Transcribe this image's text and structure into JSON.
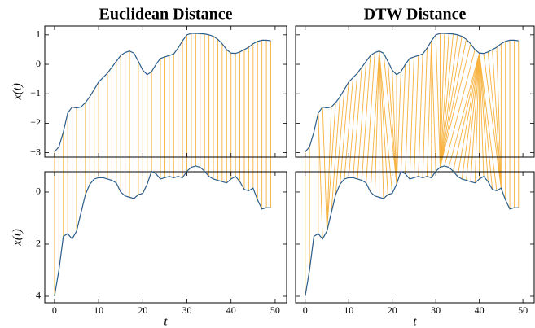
{
  "chart_data": [
    {
      "type": "line",
      "alignment": "euclidean",
      "title": "Euclidean Distance",
      "xlabel": "t",
      "ylabel": "x(t)",
      "y2label": "x(t)",
      "link_color": "#f7b13c",
      "show_ytick_labels": true,
      "x": [
        0,
        1,
        2,
        3,
        4,
        5,
        6,
        7,
        8,
        9,
        10,
        11,
        12,
        13,
        14,
        15,
        16,
        17,
        18,
        19,
        20,
        21,
        22,
        23,
        24,
        25,
        26,
        27,
        28,
        29,
        30,
        31,
        32,
        33,
        34,
        35,
        36,
        37,
        38,
        39,
        40,
        41,
        42,
        43,
        44,
        45,
        46,
        47,
        48,
        49
      ],
      "xlim": [
        -2.2,
        52.6
      ],
      "xticks": [
        0,
        10,
        20,
        30,
        40,
        50
      ],
      "ylim": [
        -3.15,
        1.3
      ],
      "yticks": [
        1,
        0,
        {
          "value": -1,
          "label": "−1"
        },
        {
          "value": -2,
          "label": "−2"
        },
        {
          "value": -3,
          "label": "−3"
        }
      ],
      "y2lim": [
        -4.25,
        0.78
      ],
      "y2ticks": [
        0,
        {
          "value": -2,
          "label": "−2"
        },
        {
          "value": -4,
          "label": "−4"
        }
      ],
      "series": [
        {
          "color": "#2b5d8a",
          "values": [
            -2.97,
            -2.8,
            -2.3,
            -1.65,
            -1.45,
            -1.48,
            -1.45,
            -1.3,
            -1.1,
            -0.85,
            -0.6,
            -0.45,
            -0.3,
            -0.1,
            0.1,
            0.3,
            0.4,
            0.45,
            0.38,
            0.1,
            -0.2,
            -0.35,
            -0.25,
            0.0,
            0.2,
            0.25,
            0.3,
            0.35,
            0.55,
            0.8,
            1.0,
            1.05,
            1.05,
            1.04,
            1.03,
            1.0,
            0.95,
            0.85,
            0.7,
            0.5,
            0.38,
            0.37,
            0.42,
            0.5,
            0.58,
            0.7,
            0.78,
            0.82,
            0.82,
            0.8
          ]
        },
        {
          "color": "#2b5d8a",
          "axis": "y2",
          "values": [
            -4.0,
            -3.0,
            -1.7,
            -1.6,
            -1.8,
            -1.5,
            -0.8,
            -0.1,
            0.3,
            0.5,
            0.55,
            0.55,
            0.5,
            0.45,
            0.35,
            0.0,
            -0.15,
            -0.2,
            -0.25,
            -0.1,
            -0.05,
            0.3,
            0.8,
            0.7,
            0.5,
            0.55,
            0.6,
            0.55,
            0.6,
            0.55,
            0.8,
            0.95,
            1.0,
            0.95,
            0.8,
            0.6,
            0.5,
            0.45,
            0.4,
            0.35,
            0.5,
            0.6,
            0.4,
            0.1,
            0.05,
            0.15,
            -0.3,
            -0.65,
            -0.6,
            -0.6
          ]
        }
      ]
    },
    {
      "type": "line",
      "alignment": "dtw",
      "title": "DTW Distance",
      "xlabel": "t",
      "link_color": "#f7b13c",
      "show_ytick_labels": false,
      "x": [
        0,
        1,
        2,
        3,
        4,
        5,
        6,
        7,
        8,
        9,
        10,
        11,
        12,
        13,
        14,
        15,
        16,
        17,
        18,
        19,
        20,
        21,
        22,
        23,
        24,
        25,
        26,
        27,
        28,
        29,
        30,
        31,
        32,
        33,
        34,
        35,
        36,
        37,
        38,
        39,
        40,
        41,
        42,
        43,
        44,
        45,
        46,
        47,
        48,
        49
      ],
      "xlim": [
        -2.2,
        52.6
      ],
      "xticks": [
        0,
        10,
        20,
        30,
        40,
        50
      ],
      "ylim": [
        -3.15,
        1.3
      ],
      "yticks": [
        1,
        0,
        -1,
        -2,
        -3
      ],
      "y2lim": [
        -4.25,
        0.78
      ],
      "y2ticks": [
        0,
        -2,
        -4
      ],
      "series": [
        {
          "color": "#2b5d8a",
          "values": [
            -2.97,
            -2.8,
            -2.3,
            -1.65,
            -1.45,
            -1.48,
            -1.45,
            -1.3,
            -1.1,
            -0.85,
            -0.6,
            -0.45,
            -0.3,
            -0.1,
            0.1,
            0.3,
            0.4,
            0.45,
            0.38,
            0.1,
            -0.2,
            -0.35,
            -0.25,
            0.0,
            0.2,
            0.25,
            0.3,
            0.35,
            0.55,
            0.8,
            1.0,
            1.05,
            1.05,
            1.04,
            1.03,
            1.0,
            0.95,
            0.85,
            0.7,
            0.5,
            0.38,
            0.37,
            0.42,
            0.5,
            0.58,
            0.7,
            0.78,
            0.82,
            0.82,
            0.8
          ]
        },
        {
          "color": "#2b5d8a",
          "axis": "y2",
          "values": [
            -4.0,
            -3.0,
            -1.7,
            -1.6,
            -1.8,
            -1.5,
            -0.8,
            -0.1,
            0.3,
            0.5,
            0.55,
            0.55,
            0.5,
            0.45,
            0.35,
            0.0,
            -0.15,
            -0.2,
            -0.25,
            -0.1,
            -0.05,
            0.3,
            0.8,
            0.7,
            0.5,
            0.55,
            0.6,
            0.55,
            0.6,
            0.55,
            0.8,
            0.95,
            1.0,
            0.95,
            0.8,
            0.6,
            0.5,
            0.45,
            0.4,
            0.35,
            0.5,
            0.6,
            0.4,
            0.1,
            0.05,
            0.15,
            -0.3,
            -0.65,
            -0.6,
            -0.6
          ]
        }
      ],
      "warping_path": [
        [
          0,
          0
        ],
        [
          1,
          1
        ],
        [
          2,
          2
        ],
        [
          3,
          3
        ],
        [
          3,
          4
        ],
        [
          4,
          5
        ],
        [
          5,
          5
        ],
        [
          6,
          5
        ],
        [
          7,
          5
        ],
        [
          8,
          6
        ],
        [
          9,
          7
        ],
        [
          10,
          8
        ],
        [
          11,
          9
        ],
        [
          12,
          10
        ],
        [
          13,
          11
        ],
        [
          14,
          12
        ],
        [
          15,
          13
        ],
        [
          16,
          14
        ],
        [
          17,
          15
        ],
        [
          17,
          16
        ],
        [
          17,
          17
        ],
        [
          17,
          18
        ],
        [
          17,
          19
        ],
        [
          17,
          20
        ],
        [
          18,
          21
        ],
        [
          19,
          21
        ],
        [
          20,
          21
        ],
        [
          21,
          21
        ],
        [
          22,
          21
        ],
        [
          23,
          22
        ],
        [
          24,
          23
        ],
        [
          25,
          24
        ],
        [
          26,
          25
        ],
        [
          27,
          26
        ],
        [
          28,
          27
        ],
        [
          29,
          28
        ],
        [
          29,
          29
        ],
        [
          29,
          30
        ],
        [
          30,
          31
        ],
        [
          31,
          31
        ],
        [
          32,
          31
        ],
        [
          33,
          31
        ],
        [
          34,
          31
        ],
        [
          35,
          31
        ],
        [
          36,
          31
        ],
        [
          37,
          31
        ],
        [
          38,
          31
        ],
        [
          39,
          32
        ],
        [
          40,
          33
        ],
        [
          40,
          34
        ],
        [
          40,
          35
        ],
        [
          40,
          36
        ],
        [
          40,
          37
        ],
        [
          40,
          38
        ],
        [
          40,
          39
        ],
        [
          40,
          40
        ],
        [
          40,
          41
        ],
        [
          40,
          42
        ],
        [
          40,
          43
        ],
        [
          40,
          44
        ],
        [
          41,
          45
        ],
        [
          42,
          45
        ],
        [
          43,
          45
        ],
        [
          44,
          45
        ],
        [
          45,
          45
        ],
        [
          46,
          46
        ],
        [
          47,
          47
        ],
        [
          48,
          48
        ],
        [
          49,
          49
        ]
      ]
    }
  ]
}
